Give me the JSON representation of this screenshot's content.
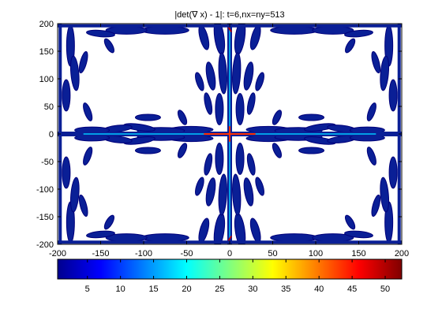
{
  "chart_data": {
    "type": "contour",
    "title": "|det(∇ x) - 1|: t=6,nx=ny=513",
    "xlim": [
      -200,
      200
    ],
    "ylim": [
      -200,
      200
    ],
    "xticks": [
      -200,
      -150,
      -100,
      -50,
      0,
      50,
      100,
      150,
      200
    ],
    "yticks": [
      200,
      150,
      100,
      50,
      0,
      -50,
      -100,
      -150,
      -200
    ],
    "colorbar": {
      "ticks": [
        5,
        10,
        15,
        20,
        25,
        30,
        35,
        40,
        45,
        50
      ],
      "range": [
        0.5,
        52.5
      ],
      "colormap": "jet"
    },
    "contour_fill_color": "#0a1f96",
    "contour_edge_color": "#00007a",
    "grid": false
  }
}
